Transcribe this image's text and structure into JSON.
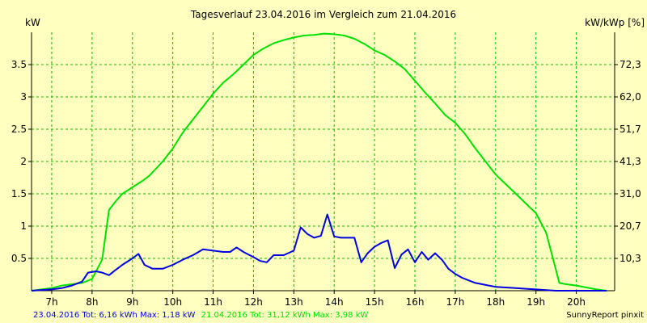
{
  "chart_data": {
    "type": "line",
    "title": "Tagesverlauf 23.04.2016 im Vergleich zum 21.04.2016",
    "ylabel_left": "kW",
    "ylabel_right": "kW/kWp [%]",
    "xlim": [
      6.5,
      20.95
    ],
    "ylim": [
      0,
      4
    ],
    "grid": true,
    "x_ticks": [
      {
        "value": 7,
        "label": "7h"
      },
      {
        "value": 8,
        "label": "8h"
      },
      {
        "value": 9,
        "label": "9h"
      },
      {
        "value": 10,
        "label": "10h"
      },
      {
        "value": 11,
        "label": "11h"
      },
      {
        "value": 12,
        "label": "12h"
      },
      {
        "value": 13,
        "label": "13h"
      },
      {
        "value": 14,
        "label": "14h"
      },
      {
        "value": 15,
        "label": "15h"
      },
      {
        "value": 16,
        "label": "16h"
      },
      {
        "value": 17,
        "label": "17h"
      },
      {
        "value": 18,
        "label": "18h"
      },
      {
        "value": 19,
        "label": "19h"
      },
      {
        "value": 20,
        "label": "20h"
      }
    ],
    "y_ticks_left": [
      {
        "value": 0.5,
        "label": "0.5"
      },
      {
        "value": 1,
        "label": "1"
      },
      {
        "value": 1.5,
        "label": "1.5"
      },
      {
        "value": 2,
        "label": "2"
      },
      {
        "value": 2.5,
        "label": "2.5"
      },
      {
        "value": 3,
        "label": "3"
      },
      {
        "value": 3.5,
        "label": "3.5"
      }
    ],
    "y_ticks_right": [
      {
        "value": 0.5,
        "label": "10,3"
      },
      {
        "value": 1,
        "label": "20,7"
      },
      {
        "value": 1.5,
        "label": "31,0"
      },
      {
        "value": 2,
        "label": "41,3"
      },
      {
        "value": 2.5,
        "label": "51,7"
      },
      {
        "value": 3,
        "label": "62,0"
      },
      {
        "value": 3.5,
        "label": "72,3"
      }
    ],
    "series": [
      {
        "name": "21.04.2016",
        "color": "#00e000",
        "x": [
          6.5,
          7.0,
          7.25,
          7.5,
          7.75,
          8.0,
          8.25,
          8.42,
          8.58,
          8.75,
          9.0,
          9.25,
          9.42,
          9.75,
          10.0,
          10.25,
          10.5,
          10.75,
          11.0,
          11.25,
          11.5,
          11.75,
          12.0,
          12.25,
          12.5,
          12.75,
          13.0,
          13.25,
          13.5,
          13.75,
          14.0,
          14.25,
          14.5,
          14.75,
          15.0,
          15.25,
          15.5,
          15.75,
          16.0,
          16.25,
          16.5,
          16.75,
          17.0,
          17.25,
          17.5,
          17.75,
          18.0,
          18.25,
          18.5,
          18.75,
          19.0,
          19.25,
          19.42,
          19.58,
          19.75,
          20.0,
          20.25,
          20.5,
          20.75
        ],
        "values": [
          0.0,
          0.04,
          0.08,
          0.1,
          0.12,
          0.18,
          0.48,
          1.25,
          1.38,
          1.5,
          1.6,
          1.7,
          1.78,
          2.0,
          2.2,
          2.45,
          2.65,
          2.85,
          3.05,
          3.22,
          3.35,
          3.5,
          3.65,
          3.75,
          3.83,
          3.88,
          3.92,
          3.95,
          3.96,
          3.98,
          3.97,
          3.95,
          3.9,
          3.82,
          3.72,
          3.65,
          3.55,
          3.43,
          3.25,
          3.07,
          2.9,
          2.72,
          2.6,
          2.42,
          2.2,
          2.0,
          1.8,
          1.65,
          1.5,
          1.35,
          1.2,
          0.9,
          0.5,
          0.12,
          0.1,
          0.08,
          0.05,
          0.02,
          0.0
        ]
      },
      {
        "name": "23.04.2016",
        "color": "#0000e0",
        "x": [
          6.5,
          7.0,
          7.25,
          7.5,
          7.75,
          7.9,
          8.1,
          8.25,
          8.42,
          8.58,
          8.75,
          9.0,
          9.15,
          9.3,
          9.5,
          9.75,
          10.0,
          10.25,
          10.5,
          10.75,
          11.0,
          11.25,
          11.42,
          11.58,
          11.75,
          12.0,
          12.17,
          12.33,
          12.5,
          12.75,
          13.0,
          13.17,
          13.33,
          13.5,
          13.67,
          13.83,
          14.0,
          14.17,
          14.33,
          14.5,
          14.67,
          14.83,
          15.0,
          15.17,
          15.33,
          15.5,
          15.67,
          15.83,
          16.0,
          16.17,
          16.33,
          16.5,
          16.67,
          16.83,
          17.0,
          17.17,
          17.33,
          17.5,
          17.67,
          17.83,
          18.0,
          18.25,
          18.5,
          18.75,
          19.0,
          19.25,
          19.5,
          19.75,
          20.0,
          20.25,
          20.5,
          20.75
        ],
        "values": [
          0.0,
          0.02,
          0.04,
          0.08,
          0.14,
          0.28,
          0.3,
          0.28,
          0.24,
          0.32,
          0.4,
          0.5,
          0.57,
          0.4,
          0.34,
          0.34,
          0.4,
          0.48,
          0.55,
          0.64,
          0.62,
          0.6,
          0.6,
          0.67,
          0.6,
          0.52,
          0.46,
          0.44,
          0.55,
          0.55,
          0.62,
          0.98,
          0.88,
          0.82,
          0.85,
          1.18,
          0.84,
          0.82,
          0.82,
          0.82,
          0.44,
          0.58,
          0.68,
          0.74,
          0.78,
          0.35,
          0.56,
          0.64,
          0.44,
          0.6,
          0.48,
          0.58,
          0.48,
          0.34,
          0.26,
          0.2,
          0.16,
          0.12,
          0.1,
          0.08,
          0.06,
          0.05,
          0.04,
          0.03,
          0.02,
          0.01,
          0.0,
          0.0,
          0.0,
          0.0,
          0.0,
          0.0
        ]
      }
    ]
  },
  "footer": {
    "series_a_text": "23.04.2016 Tot: 6,16 kWh Max: 1,18 kW",
    "series_a_color": "#0000e0",
    "series_b_text": "21.04.2016 Tot: 31,12 kWh Max: 3,98 kW",
    "series_b_color": "#00e000",
    "credit": "SunnyReport pinxit"
  }
}
